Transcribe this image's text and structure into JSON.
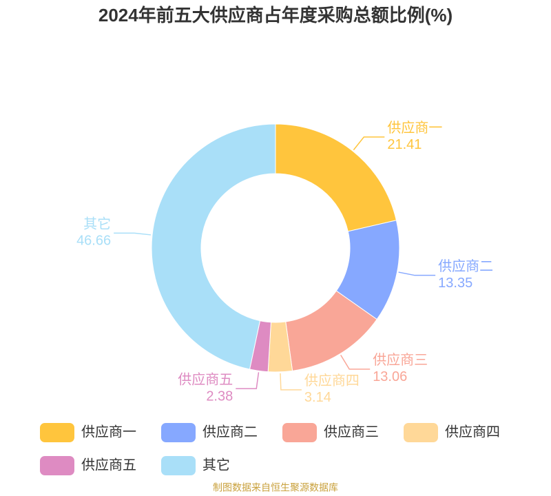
{
  "chart_data": {
    "type": "pie",
    "title": "2024年前五大供应商占年度采购总额比例(%)",
    "categories": [
      "供应商一",
      "供应商二",
      "供应商三",
      "供应商四",
      "供应商五",
      "其它"
    ],
    "values": [
      21.41,
      13.35,
      13.06,
      3.14,
      2.38,
      46.66
    ],
    "colors": [
      "#ffc53d",
      "#86a8ff",
      "#f9a697",
      "#ffd898",
      "#de8bc2",
      "#a9dff8"
    ],
    "donut": true,
    "source": "制图数据来自恒生聚源数据库"
  }
}
